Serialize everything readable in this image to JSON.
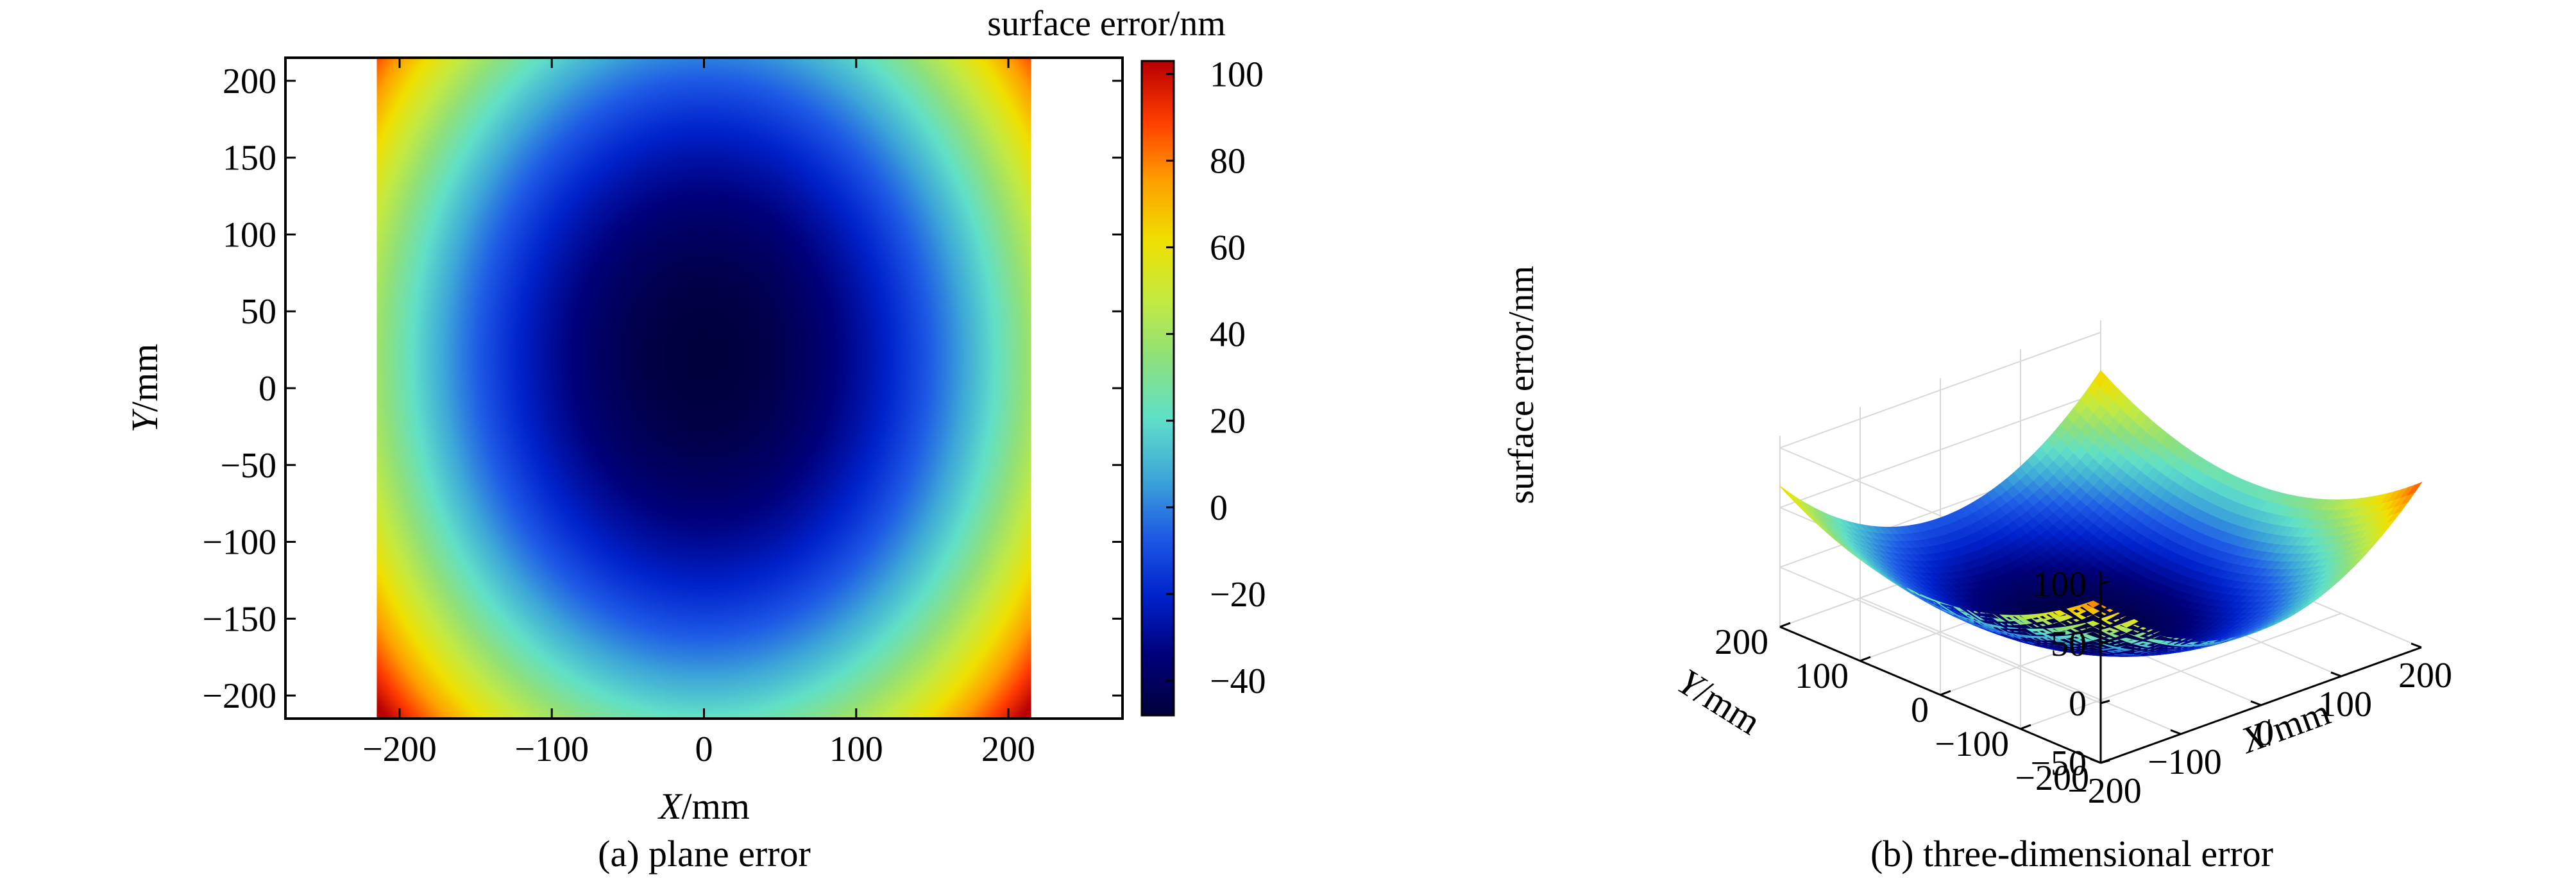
{
  "chart_data": [
    {
      "type": "heatmap",
      "caption": "(a) plane error",
      "xlabel_var": "X",
      "xlabel_unit": "/mm",
      "ylabel_var": "Y",
      "ylabel_unit": "/mm",
      "xlim": [
        -275,
        275
      ],
      "ylim": [
        215,
        -215
      ],
      "x_ticks": [
        -200,
        -100,
        0,
        100,
        200
      ],
      "x_tick_labels": [
        "−200",
        "−100",
        "0",
        "100",
        "200"
      ],
      "y_ticks": [
        -200,
        -150,
        -100,
        -50,
        0,
        50,
        100,
        150,
        200
      ],
      "y_tick_labels": [
        "−200",
        "−150",
        "−100",
        "−50",
        "0",
        "50",
        "100",
        "150",
        "200"
      ],
      "data_extent_x": [
        -215,
        215
      ],
      "data_extent_y": [
        -215,
        215
      ],
      "colorbar_title": "surface error/nm",
      "colorbar_range": [
        -48,
        103
      ],
      "colorbar_ticks": [
        100,
        80,
        60,
        40,
        20,
        0,
        -20,
        -40
      ],
      "colorbar_tick_labels": [
        "100",
        "80",
        "60",
        "40",
        "20",
        "0",
        "−20",
        "−40"
      ],
      "surface_model": {
        "center": [
          0,
          20
        ],
        "min_value": -48,
        "max_value": 103,
        "semi_axis_x_at_0nm": 160,
        "semi_axis_y_at_0nm": 195
      },
      "colormap": [
        "#00003c",
        "#00007a",
        "#0022cc",
        "#1e5ae6",
        "#3ea8d8",
        "#60e0c8",
        "#8ee07c",
        "#c4ea40",
        "#f0e000",
        "#ff9e00",
        "#ff3c00",
        "#b80000"
      ]
    },
    {
      "type": "surface3d",
      "caption": "(b) three-dimensional error",
      "zlabel": "surface error/nm",
      "xlabel_var": "X",
      "xlabel_unit": "/mm",
      "ylabel_var": "Y",
      "ylabel_unit": "/mm",
      "z_ticks": [
        100,
        50,
        0,
        -50
      ],
      "z_tick_labels": [
        "100",
        "50",
        "0",
        "−50"
      ],
      "x_ticks": [
        -200,
        -100,
        0,
        100,
        200
      ],
      "x_tick_labels": [
        "−200",
        "−100",
        "0",
        "100",
        "200"
      ],
      "y_ticks": [
        200,
        100,
        0,
        -100,
        -200
      ],
      "y_tick_labels": [
        "200",
        "100",
        "0",
        "−100",
        "−200"
      ],
      "zlim": [
        -50,
        110
      ],
      "surface_range": [
        -48,
        103
      ],
      "grid": true
    }
  ]
}
